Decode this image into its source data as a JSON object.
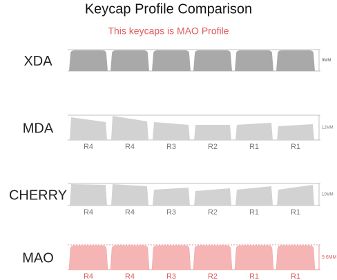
{
  "header": {
    "title": "Keycap Profile Comparison",
    "subtitle": "This keycaps is MAO Profile"
  },
  "profiles": [
    {
      "name": "XDA",
      "height": "9MM"
    },
    {
      "name": "MDA",
      "height": "12MM",
      "rows": [
        "R4",
        "R4",
        "R3",
        "R2",
        "R1",
        "R1"
      ]
    },
    {
      "name": "CHERRY",
      "height": "10MM",
      "rows": [
        "R4",
        "R4",
        "R3",
        "R2",
        "R1",
        "R1"
      ]
    },
    {
      "name": "MAO",
      "height": "9.6MM",
      "rows": [
        "R4",
        "R4",
        "R3",
        "R2",
        "R1",
        "R1"
      ]
    }
  ]
}
